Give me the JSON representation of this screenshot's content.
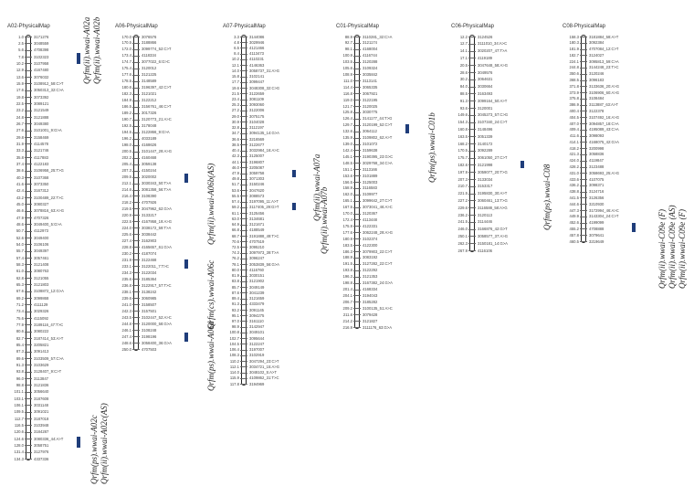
{
  "chromosomes": [
    {
      "name": "A02-PhysicalMap",
      "markers": [
        [
          "1.0",
          "3171276"
        ],
        [
          "2.5",
          "3048559"
        ],
        [
          "5.6",
          "4708398"
        ],
        [
          "7.8",
          "3102323"
        ],
        [
          "10.2",
          "3107958"
        ],
        [
          "12.9",
          "4167480"
        ],
        [
          "13.6",
          "3076032"
        ],
        [
          "15.9",
          "3108912_58:C>T"
        ],
        [
          "17.6",
          "3050313_32:C>A"
        ],
        [
          "19.8",
          "3073392"
        ],
        [
          "22.5",
          "3089121"
        ],
        [
          "23.2",
          "3121549"
        ],
        [
          "24.8",
          "3121888"
        ],
        [
          "26.7",
          "3049380"
        ],
        [
          "27.6",
          "3101001_9:G>A"
        ],
        [
          "29.8",
          "3158469"
        ],
        [
          "31.9",
          "4114578"
        ],
        [
          "33.3",
          "3121746"
        ],
        [
          "35.8",
          "4117883"
        ],
        [
          "37.4",
          "4122183"
        ],
        [
          "38.6",
          "3106958_25:T>G"
        ],
        [
          "40.3",
          "3107368"
        ],
        [
          "41.6",
          "3073350"
        ],
        [
          "42.4",
          "3167312"
        ],
        [
          "43.2",
          "3100489_22:T>C"
        ],
        [
          "45.0",
          "3080327"
        ],
        [
          "46.6",
          "3078816_63:A>G"
        ],
        [
          "47.9",
          "4707326"
        ],
        [
          "48.6",
          "3049400_5:G>A"
        ],
        [
          "50.7",
          "4112973"
        ],
        [
          "52.6",
          "3049400"
        ],
        [
          "54.0",
          "3106106"
        ],
        [
          "55.7",
          "3049397"
        ],
        [
          "57.4",
          "3057461"
        ],
        [
          "58.3",
          "3121408"
        ],
        [
          "61.0",
          "3080763"
        ],
        [
          "62.8",
          "3121055"
        ],
        [
          "65.3",
          "3121803"
        ],
        [
          "67.6",
          "3108872_12:G>A"
        ],
        [
          "69.2",
          "3099868"
        ],
        [
          "71.2",
          "4111129"
        ],
        [
          "73.4",
          "3029326"
        ],
        [
          "75.6",
          "4115092"
        ],
        [
          "77.9",
          "3189116_47:T>C"
        ],
        [
          "80.6",
          "3080222"
        ],
        [
          "82.7",
          "3187414_53:A>T"
        ],
        [
          "85.4",
          "3205821"
        ],
        [
          "87.3",
          "3091413"
        ],
        [
          "89.6",
          "3103509_57:C>A"
        ],
        [
          "91.3",
          "3103629"
        ],
        [
          "93.8",
          "3128407_9:C>T"
        ],
        [
          "96.0",
          "3113847"
        ],
        [
          "98.8",
          "3121836"
        ],
        [
          "101.1",
          "3056640"
        ],
        [
          "103.1",
          "3187608"
        ],
        [
          "106.1",
          "3031148"
        ],
        [
          "109.5",
          "3091021"
        ],
        [
          "112.7",
          "3187018"
        ],
        [
          "116.5",
          "3103948"
        ],
        [
          "120.6",
          "3184287"
        ],
        [
          "124.6",
          "3080336_44:A>T"
        ],
        [
          "128.0",
          "3058751"
        ],
        [
          "131.4",
          "3127976"
        ],
        [
          "134.3",
          "4337336"
        ]
      ]
    },
    {
      "name": "A06-PhysicalMap",
      "markers": [
        [
          "170.0",
          "3076576"
        ],
        [
          "170.5",
          "3188866"
        ],
        [
          "172.0",
          "3099774_52:C>T"
        ],
        [
          "173.4",
          "4118334"
        ],
        [
          "174.7",
          "3077022_6:G>C"
        ],
        [
          "175.4",
          "3120012"
        ],
        [
          "177.6",
          "3121225"
        ],
        [
          "178.5",
          "3148589"
        ],
        [
          "180.6",
          "3196397_42:C>T"
        ],
        [
          "182.3",
          "3121021"
        ],
        [
          "184.9",
          "3122212"
        ],
        [
          "186.5",
          "3156761_46:C>T"
        ],
        [
          "189.2",
          "3017326"
        ],
        [
          "190.7",
          "3120773_21:A>C"
        ],
        [
          "192.5",
          "3178048"
        ],
        [
          "194.5",
          "3122866_9:G>A"
        ],
        [
          "196.2",
          "4033189"
        ],
        [
          "198.0",
          "4168626"
        ],
        [
          "200.5",
          "3101447_29:A>G"
        ],
        [
          "202.2",
          "4160468"
        ],
        [
          "205.4",
          "3059138"
        ],
        [
          "207.3",
          "4150244"
        ],
        [
          "209.5",
          "3020002"
        ],
        [
          "212.1",
          "3030343_50:T>A"
        ],
        [
          "214.6",
          "3081358_56:T>A"
        ],
        [
          "216.4",
          "3108390"
        ],
        [
          "218.2",
          "4707926"
        ],
        [
          "219.5",
          "3047962_62:G>A"
        ],
        [
          "220.9",
          "3133217"
        ],
        [
          "222.5",
          "4167958_19:A>G"
        ],
        [
          "224.0",
          "3038172_59:T>A"
        ],
        [
          "225.6",
          "3038442"
        ],
        [
          "227.4",
          "3162903"
        ],
        [
          "228.8",
          "4165657_61:G>A"
        ],
        [
          "230.2",
          "4187074"
        ],
        [
          "231.9",
          "3122468"
        ],
        [
          "233.1",
          "3122011_7:T>C"
        ],
        [
          "234.3",
          "3122034"
        ],
        [
          "235.6",
          "3185364"
        ],
        [
          "236.8",
          "3122917_57:T>C"
        ],
        [
          "238.1",
          "3138242"
        ],
        [
          "239.6",
          "3060985"
        ],
        [
          "241.0",
          "3158507"
        ],
        [
          "242.3",
          "3157501"
        ],
        [
          "243.5",
          "3102447_52:A>C"
        ],
        [
          "244.8",
          "3120000_58:G>A"
        ],
        [
          "246.1",
          "3108248"
        ],
        [
          "247.4",
          "3198196"
        ],
        [
          "248.6",
          "3058400_36:G>A"
        ],
        [
          "250.0",
          "4707503"
        ]
      ]
    },
    {
      "name": "A07-PhysicalMap",
      "markers": [
        [
          "3.3",
          "3144086"
        ],
        [
          "4.8",
          "3029946"
        ],
        [
          "6.5",
          "4121466"
        ],
        [
          "8.4",
          "4113473"
        ],
        [
          "10.2",
          "4110231"
        ],
        [
          "12.1",
          "4146363"
        ],
        [
          "14.0",
          "3058737_31:A>G"
        ],
        [
          "15.8",
          "3102141"
        ],
        [
          "17.7",
          "3099447"
        ],
        [
          "19.6",
          "3048308_32:C>G"
        ],
        [
          "21.5",
          "3122659"
        ],
        [
          "23.4",
          "3081109"
        ],
        [
          "25.3",
          "3093060"
        ],
        [
          "27.2",
          "3122006"
        ],
        [
          "29.0",
          "3075175"
        ],
        [
          "30.9",
          "3104028"
        ],
        [
          "32.8",
          "3112197"
        ],
        [
          "34.7",
          "3094135_14:G>A"
        ],
        [
          "36.6",
          "3216569"
        ],
        [
          "38.5",
          "3122677"
        ],
        [
          "40.4",
          "3032984_16:A>C"
        ],
        [
          "42.3",
          "3125007"
        ],
        [
          "44.1",
          "3196807"
        ],
        [
          "46.0",
          "3205087"
        ],
        [
          "47.9",
          "3059758"
        ],
        [
          "49.8",
          "3071303"
        ],
        [
          "51.7",
          "3150246"
        ],
        [
          "53.6",
          "3047620"
        ],
        [
          "55.5",
          "3088573"
        ],
        [
          "57.4",
          "3197095_11:A>T"
        ],
        [
          "59.2",
          "3117405_29:G>T"
        ],
        [
          "61.1",
          "3125456"
        ],
        [
          "63.0",
          "3134681"
        ],
        [
          "64.9",
          "3121671"
        ],
        [
          "66.8",
          "4188549"
        ],
        [
          "68.7",
          "3191888_49:T>C"
        ],
        [
          "70.6",
          "4707519"
        ],
        [
          "72.5",
          "3095210"
        ],
        [
          "74.3",
          "3097973_39:T>A"
        ],
        [
          "76.2",
          "3096247"
        ],
        [
          "78.1",
          "3053839_56:G>A"
        ],
        [
          "80.0",
          "4116760"
        ],
        [
          "81.9",
          "3030151"
        ],
        [
          "83.8",
          "3121902"
        ],
        [
          "85.7",
          "3049149"
        ],
        [
          "87.6",
          "3041239"
        ],
        [
          "89.4",
          "3121659"
        ],
        [
          "91.3",
          "4333479"
        ],
        [
          "93.2",
          "3091145"
        ],
        [
          "95.1",
          "3094275"
        ],
        [
          "97.0",
          "3161110"
        ],
        [
          "98.9",
          "3142947"
        ],
        [
          "100.8",
          "3049101"
        ],
        [
          "102.7",
          "3095644"
        ],
        [
          "104.5",
          "3122247"
        ],
        [
          "106.4",
          "3197007"
        ],
        [
          "108.3",
          "3102919"
        ],
        [
          "110.2",
          "3047294_23:C>T"
        ],
        [
          "112.1",
          "3034721_15:A>G"
        ],
        [
          "114.0",
          "3048102_5:A>T"
        ],
        [
          "115.9",
          "4109862_31:T>C"
        ],
        [
          "117.8",
          "3194969"
        ]
      ]
    },
    {
      "name": "C01-PhysicalMap",
      "markers": [
        [
          "88.9",
          "3110281_32:C>A"
        ],
        [
          "92.7",
          "3121174"
        ],
        [
          "98.1",
          "4168004"
        ],
        [
          "100.9",
          "4116744"
        ],
        [
          "103.5",
          "3120288"
        ],
        [
          "105.6",
          "3109324"
        ],
        [
          "108.9",
          "3035842"
        ],
        [
          "111.0",
          "3113141"
        ],
        [
          "114.4",
          "3065335"
        ],
        [
          "116.8",
          "3067921"
        ],
        [
          "119.0",
          "3122195"
        ],
        [
          "121.7",
          "3120025"
        ],
        [
          "125.8",
          "3030775"
        ],
        [
          "126.4",
          "3141177_44:T>G"
        ],
        [
          "129.7",
          "3120199_52:C>T"
        ],
        [
          "132.6",
          "3064112"
        ],
        [
          "135.9",
          "3109802_62:A>T"
        ],
        [
          "139.0",
          "3101072"
        ],
        [
          "142.4",
          "3159638"
        ],
        [
          "145.1",
          "3190395_23:G>C"
        ],
        [
          "148.5",
          "3029768_34:C>A"
        ],
        [
          "151.1",
          "3113166"
        ],
        [
          "153.6",
          "3101889"
        ],
        [
          "156.5",
          "3125003"
        ],
        [
          "158.9",
          "3116583"
        ],
        [
          "162.0",
          "3109977"
        ],
        [
          "165.1",
          "3099642_27:C>T"
        ],
        [
          "167.5",
          "3073041_46:A>C"
        ],
        [
          "170.0",
          "3120367"
        ],
        [
          "172.4",
          "4113448"
        ],
        [
          "175.9",
          "4122331"
        ],
        [
          "177.6",
          "3062248_29:A>G"
        ],
        [
          "180.9",
          "3102374"
        ],
        [
          "183.5",
          "4122300"
        ],
        [
          "186.3",
          "3079903_22:C>T"
        ],
        [
          "188.9",
          "3083192"
        ],
        [
          "191.5",
          "3127282_22:C>T"
        ],
        [
          "193.8",
          "3122292"
        ],
        [
          "196.3",
          "3121353"
        ],
        [
          "198.8",
          "3167382_24:G>A"
        ],
        [
          "201.4",
          "4168334"
        ],
        [
          "204.1",
          "3194043"
        ],
        [
          "206.7",
          "3185282"
        ],
        [
          "209.2",
          "3100135_51:A>C"
        ],
        [
          "211.6",
          "3079428"
        ],
        [
          "214.2",
          "3121827"
        ],
        [
          "216.9",
          "3111176_63:G>A"
        ]
      ]
    },
    {
      "name": "C06-PhysicalMap",
      "markers": [
        [
          "12.2",
          "3124526"
        ],
        [
          "12.7",
          "3111010_34:A>C"
        ],
        [
          "14.1",
          "3020207_47:T>A"
        ],
        [
          "17.1",
          "4119189"
        ],
        [
          "20.5",
          "3047648_58:A>G"
        ],
        [
          "28.6",
          "3049576"
        ],
        [
          "30.2",
          "3064631"
        ],
        [
          "84.0",
          "3030664"
        ],
        [
          "88.5",
          "3163493"
        ],
        [
          "91.3",
          "3099164_50:A>T"
        ],
        [
          "93.6",
          "3120001"
        ],
        [
          "149.6",
          "3045273_57:C>G"
        ],
        [
          "154.3",
          "3107340_24:C>T"
        ],
        [
          "160.8",
          "3148496"
        ],
        [
          "163.5",
          "3051339"
        ],
        [
          "168.2",
          "3140172"
        ],
        [
          "170.5",
          "3092289"
        ],
        [
          "175.7",
          "3061050_27:C>T"
        ],
        [
          "182.6",
          "3121998"
        ],
        [
          "197.9",
          "3059077_20:T>G"
        ],
        [
          "207.3",
          "3133034"
        ],
        [
          "210.7",
          "3153317"
        ],
        [
          "221.5",
          "3195830_30:A>T"
        ],
        [
          "227.2",
          "3060461_13:T>G"
        ],
        [
          "229.6",
          "3116588_58:A>G"
        ],
        [
          "236.2",
          "3120113"
        ],
        [
          "241.5",
          "3114446"
        ],
        [
          "246.0",
          "3166876_42:G>T"
        ],
        [
          "250.1",
          "3058577_37:A>G"
        ],
        [
          "262.3",
          "3150181_14:G>A"
        ],
        [
          "267.9",
          "4116106"
        ]
      ]
    },
    {
      "name": "C08-PhysicalMap",
      "markers": [
        [
          "158.3",
          "3181884_58:A>T"
        ],
        [
          "180.3",
          "3092384"
        ],
        [
          "181.9",
          "4707084_12:C>T"
        ],
        [
          "182.7",
          "3124027"
        ],
        [
          "224.1",
          "3095813_59:C>A"
        ],
        [
          "244.8",
          "3144248_23:T>C"
        ],
        [
          "350.6",
          "3120246"
        ],
        [
          "368.5",
          "3096183"
        ],
        [
          "371.8",
          "3133636_20:A>G"
        ],
        [
          "373.9",
          "3106906_60:A>G"
        ],
        [
          "375.8",
          "3108484"
        ],
        [
          "386.9",
          "3113887_63:A>T"
        ],
        [
          "400.4",
          "3122378"
        ],
        [
          "404.5",
          "3107492_16:A>G"
        ],
        [
          "407.0",
          "3094857_18:C>A"
        ],
        [
          "409.4",
          "4195089_43:C>A"
        ],
        [
          "411.6",
          "3098093"
        ],
        [
          "414.1",
          "4168075_42:G>A"
        ],
        [
          "418.2",
          "3200998"
        ],
        [
          "421.3",
          "3058836"
        ],
        [
          "424.0",
          "4119847"
        ],
        [
          "428.2",
          "3123488"
        ],
        [
          "431.0",
          "3058693_25:A>G"
        ],
        [
          "433.6",
          "4107075"
        ],
        [
          "436.2",
          "3098371"
        ],
        [
          "438.8",
          "3124716"
        ],
        [
          "441.5",
          "3126356"
        ],
        [
          "444.6",
          "3210930"
        ],
        [
          "447.3",
          "3172994_46:A>C"
        ],
        [
          "449.9",
          "3143304_24:C>T"
        ],
        [
          "452.6",
          "4199099"
        ],
        [
          "455.2",
          "4708888"
        ],
        [
          "457.8",
          "3079641"
        ],
        [
          "460.5",
          "3219649"
        ]
      ]
    }
  ],
  "qtls": [
    {
      "chr": 0,
      "labels": [
        "Qrfm(ii).wwai-A02a",
        "Qrfm(ii).wwai-A02b"
      ]
    },
    {
      "chr": 0,
      "labels": [
        "Qrfm(ps).wwai-A02c",
        "Qrfm(ii).wwai-A02c(AS)"
      ]
    },
    {
      "chr": 1,
      "labels": [
        "Qrfm(ii).wwai-A06b(AS)"
      ]
    },
    {
      "chr": 1,
      "labels": [
        "Qrfm(cs).wwai-A06c"
      ]
    },
    {
      "chr": 1,
      "labels": [
        "Qrfm(ps).wwai-A06d"
      ]
    },
    {
      "chr": 2,
      "labels": [
        "Qrfm(ii).wwai-A07a"
      ]
    },
    {
      "chr": 2,
      "labels": [
        "Qrfm(ii).wwai-A07b"
      ]
    },
    {
      "chr": 3,
      "labels": [
        "Qrfm(ps).wwai-C01b"
      ]
    },
    {
      "chr": 4,
      "labels": [
        "Qrfm(ps).wwai-C08"
      ]
    },
    {
      "chr": 5,
      "labels": [
        "Qrfm(ii).wwai-C09e (F)",
        "Qrfm(ii).wwai-C09e (AS)",
        "Qrfm(ii).wwai-C09e (F)"
      ]
    }
  ],
  "colors": {
    "qtl": "#1f3d7a",
    "bar": "#ffffff",
    "outline": "#222222"
  }
}
